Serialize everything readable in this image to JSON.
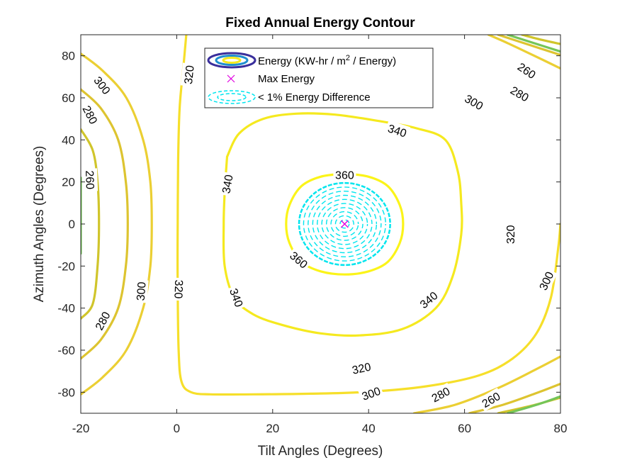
{
  "chart_data": {
    "type": "contour",
    "title": "Fixed Annual Energy Contour",
    "xlabel": "Tilt Angles (Degrees)",
    "ylabel": "Azimuth Angles (Degrees)",
    "xlim": [
      -20,
      80
    ],
    "ylim": [
      -90,
      90
    ],
    "xticks": [
      -20,
      0,
      20,
      40,
      60,
      80
    ],
    "yticks": [
      -80,
      -60,
      -40,
      -20,
      0,
      20,
      40,
      60,
      80
    ],
    "max_energy_point": {
      "x": 35,
      "y": 0
    },
    "legend": {
      "placement": "top-center",
      "entries": [
        {
          "label_pre": "Energy (KW-hr / m",
          "label_sup": "2",
          "label_post": " / Energy)"
        },
        {
          "label": "Max Energy"
        },
        {
          "label": "< 1% Energy Difference"
        }
      ]
    },
    "levels": [
      {
        "value": 260,
        "color": "#d0c52b"
      },
      {
        "value": 280,
        "color": "#ddc430"
      },
      {
        "value": 300,
        "color": "#ebcf33"
      },
      {
        "value": 320,
        "color": "#f6df2a"
      },
      {
        "value": 340,
        "color": "#f5e91f"
      },
      {
        "value": 360,
        "color": "#fbf419"
      }
    ],
    "contours": [
      {
        "level": 240,
        "color": "#74c558",
        "points": [
          [
            -20,
            22
          ],
          [
            -20,
            -14
          ]
        ]
      },
      {
        "level": 260,
        "color": "#d0c52b",
        "points": [
          [
            -20,
            45
          ],
          [
            -17.5,
            35
          ],
          [
            -16.5,
            20
          ],
          [
            -16.2,
            0
          ],
          [
            -16.5,
            -20
          ],
          [
            -17.5,
            -38
          ],
          [
            -20,
            -45
          ]
        ]
      },
      {
        "level": 280,
        "color": "#ddc430",
        "points": [
          [
            -20,
            64
          ],
          [
            -15.8,
            55
          ],
          [
            -12.2,
            40
          ],
          [
            -10.6,
            20
          ],
          [
            -10.2,
            0
          ],
          [
            -10.6,
            -20
          ],
          [
            -12.2,
            -40
          ],
          [
            -15.8,
            -55
          ],
          [
            -20,
            -64
          ]
        ]
      },
      {
        "level": 300,
        "color": "#ebcf33",
        "points": [
          [
            -20,
            81
          ],
          [
            -15.5,
            73
          ],
          [
            -10.5,
            60
          ],
          [
            -7,
            40
          ],
          [
            -5.5,
            20
          ],
          [
            -5.2,
            0
          ],
          [
            -5.5,
            -20
          ],
          [
            -7,
            -40
          ],
          [
            -10.5,
            -60
          ],
          [
            -15.5,
            -73
          ],
          [
            -20,
            -81
          ]
        ]
      },
      {
        "level": 320,
        "color": "#f6df2a",
        "points": [
          [
            2,
            90
          ],
          [
            1.4,
            75
          ],
          [
            0.6,
            55
          ],
          [
            0.3,
            30
          ],
          [
            0.2,
            0
          ],
          [
            0.2,
            -30
          ],
          [
            0.4,
            -60
          ],
          [
            1,
            -75
          ],
          [
            3,
            -80
          ],
          [
            7,
            -81
          ],
          [
            16,
            -81
          ],
          [
            28,
            -80.7
          ],
          [
            40,
            -79.8
          ],
          [
            52,
            -77.2
          ],
          [
            63,
            -72
          ],
          [
            70,
            -64
          ],
          [
            75,
            -52
          ],
          [
            78,
            -35
          ],
          [
            79.5,
            -12
          ],
          [
            80,
            0
          ]
        ]
      },
      {
        "level": 340,
        "color": "#f5e91f",
        "points": [
          [
            10.5,
            32
          ],
          [
            13,
            43
          ],
          [
            18,
            50
          ],
          [
            25,
            52.5
          ],
          [
            33,
            52
          ],
          [
            42,
            49
          ],
          [
            50,
            45.5
          ],
          [
            56,
            40
          ],
          [
            58.6,
            25
          ],
          [
            59.3,
            10
          ],
          [
            59.3,
            -5
          ],
          [
            57.5,
            -25
          ],
          [
            54,
            -40
          ],
          [
            47,
            -50
          ],
          [
            38,
            -53
          ],
          [
            30,
            -52
          ],
          [
            22,
            -48
          ],
          [
            16,
            -43
          ],
          [
            12,
            -35
          ],
          [
            10,
            -20
          ],
          [
            9.8,
            0
          ],
          [
            10,
            15
          ],
          [
            10.5,
            32
          ]
        ]
      },
      {
        "level": 360,
        "color": "#fbf419",
        "points": [
          [
            35,
            24
          ],
          [
            40,
            22.5
          ],
          [
            44,
            18
          ],
          [
            46.5,
            9
          ],
          [
            47.2,
            0
          ],
          [
            46.5,
            -9
          ],
          [
            44,
            -18
          ],
          [
            40,
            -22.5
          ],
          [
            35,
            -24
          ],
          [
            30,
            -22.5
          ],
          [
            26,
            -18
          ],
          [
            23.5,
            -9
          ],
          [
            22.8,
            0
          ],
          [
            23.5,
            9
          ],
          [
            26,
            18
          ],
          [
            30,
            22.5
          ],
          [
            35,
            24
          ]
        ]
      },
      {
        "level": 300,
        "color": "#ebcf33",
        "points": [
          [
            65,
            90
          ],
          [
            69,
            86
          ],
          [
            74,
            80.6
          ],
          [
            80,
            74
          ]
        ]
      },
      {
        "level": 280,
        "color": "#ddc430",
        "points": [
          [
            67,
            90
          ],
          [
            74,
            84.8
          ],
          [
            80,
            80.4
          ]
        ]
      },
      {
        "level": 260,
        "color": "#d0c52b",
        "points": [
          [
            72,
            90
          ],
          [
            76,
            87.6
          ],
          [
            80,
            85.6
          ]
        ]
      },
      {
        "level": 240,
        "color": "#74c558",
        "points": [
          [
            69,
            90
          ],
          [
            80,
            82
          ]
        ]
      },
      {
        "level": 300,
        "color": "#ebcf33",
        "points": [
          [
            49.5,
            -90
          ],
          [
            58,
            -86
          ],
          [
            67,
            -78
          ],
          [
            75,
            -69
          ],
          [
            80,
            -63
          ]
        ]
      },
      {
        "level": 280,
        "color": "#ddc430",
        "points": [
          [
            61,
            -90
          ],
          [
            68,
            -86
          ],
          [
            75,
            -80.4
          ],
          [
            80,
            -76
          ]
        ]
      },
      {
        "level": 260,
        "color": "#d0c52b",
        "points": [
          [
            67,
            -90
          ],
          [
            74,
            -86.4
          ],
          [
            80,
            -82.6
          ]
        ]
      },
      {
        "level": 240,
        "color": "#74c558",
        "points": [
          [
            69,
            -90
          ],
          [
            75,
            -86
          ],
          [
            80,
            -82
          ]
        ]
      }
    ],
    "tolerance_region": {
      "label": "< 1% Energy Difference",
      "center": [
        35,
        0
      ],
      "rx": 9.5,
      "ry": 19.5,
      "color": "#00e5ee"
    },
    "contour_labels": [
      {
        "text": "300",
        "x": -15.5,
        "y": 66,
        "rot": 52
      },
      {
        "text": "280",
        "x": -18,
        "y": 52,
        "rot": 62
      },
      {
        "text": "260",
        "x": -18,
        "y": 21,
        "rot": 88
      },
      {
        "text": "300",
        "x": -7.5,
        "y": -32,
        "rot": -86
      },
      {
        "text": "280",
        "x": -15.5,
        "y": -46,
        "rot": -62
      },
      {
        "text": "320",
        "x": 2.5,
        "y": 71,
        "rot": -84
      },
      {
        "text": "320",
        "x": 0.5,
        "y": -31,
        "rot": 92
      },
      {
        "text": "340",
        "x": 10.5,
        "y": 19,
        "rot": -80
      },
      {
        "text": "340",
        "x": 12.5,
        "y": -35,
        "rot": 70
      },
      {
        "text": "340",
        "x": 46,
        "y": 44.5,
        "rot": 18
      },
      {
        "text": "340",
        "x": 52.5,
        "y": -36,
        "rot": -40
      },
      {
        "text": "360",
        "x": 35,
        "y": 23.5,
        "rot": 0
      },
      {
        "text": "360",
        "x": 25.5,
        "y": -17,
        "rot": 40
      },
      {
        "text": "320",
        "x": 69.5,
        "y": -5,
        "rot": -90
      },
      {
        "text": "300",
        "x": 77,
        "y": -27,
        "rot": -65
      },
      {
        "text": "320",
        "x": 38.5,
        "y": -68.5,
        "rot": -12
      },
      {
        "text": "300",
        "x": 40.5,
        "y": -80.5,
        "rot": -20
      },
      {
        "text": "280",
        "x": 55,
        "y": -81,
        "rot": -28
      },
      {
        "text": "260",
        "x": 65.5,
        "y": -83.5,
        "rot": -30
      },
      {
        "text": "300",
        "x": 62,
        "y": 58,
        "rot": 30
      },
      {
        "text": "280",
        "x": 71.5,
        "y": 62,
        "rot": 30
      },
      {
        "text": "260",
        "x": 73,
        "y": 73,
        "rot": 34
      }
    ]
  }
}
